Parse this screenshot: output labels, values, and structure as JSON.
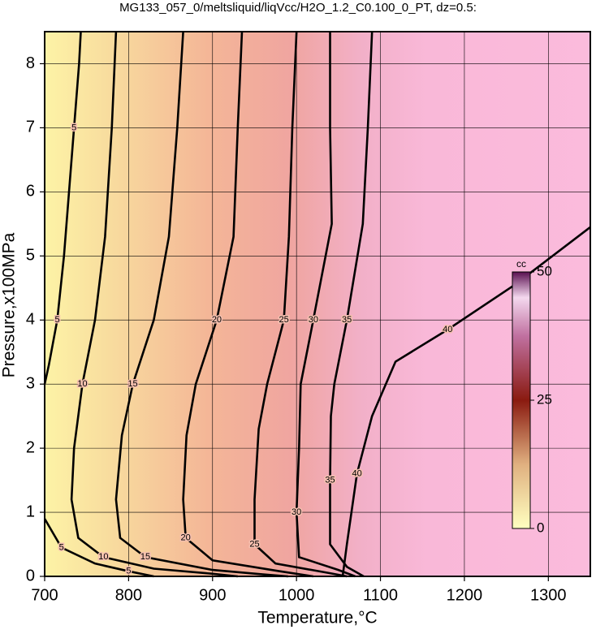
{
  "chart_data": {
    "type": "contour",
    "title": "MG133_057_0/meltsliquid/liqVcc/H2O_1.2_C0.100_0_PT, dz=0.5:",
    "xlabel": "Temperature,°C",
    "ylabel": "Pressure,x100MPa",
    "xlim": [
      700,
      1350
    ],
    "xticks": [
      700,
      800,
      900,
      1000,
      1100,
      1200,
      1300
    ],
    "ylim": [
      0,
      8.5
    ],
    "yticks": [
      0,
      1,
      2,
      3,
      4,
      5,
      6,
      7,
      8
    ],
    "grid": true,
    "contours": [
      {
        "level": 5,
        "x": [
          743,
          741,
          735,
          729,
          723,
          715,
          705,
          700
        ],
        "y": [
          8.5,
          8,
          7,
          6,
          5,
          4,
          3.3,
          3.0
        ]
      },
      {
        "level": 5,
        "x": [
          700,
          720,
          760,
          800,
          830
        ],
        "y": [
          0.9,
          0.45,
          0.2,
          0.08,
          0
        ]
      },
      {
        "level": 10,
        "x": [
          785,
          780,
          772,
          760,
          745,
          735,
          732,
          740,
          770,
          830,
          900,
          930
        ],
        "y": [
          8.5,
          7,
          5.3,
          4,
          3,
          2,
          1.2,
          0.6,
          0.3,
          0.12,
          0.04,
          0
        ]
      },
      {
        "level": 15,
        "x": [
          865,
          858,
          848,
          830,
          805,
          792,
          785,
          790,
          820,
          900,
          960,
          990
        ],
        "y": [
          8.5,
          7,
          5.3,
          4,
          3,
          2.2,
          1.2,
          0.6,
          0.3,
          0.1,
          0.03,
          0
        ]
      },
      {
        "level": 20,
        "x": [
          935,
          930,
          925,
          905,
          880,
          869,
          865,
          868,
          900,
          980,
          1020
        ],
        "y": [
          8.5,
          7,
          5.3,
          4,
          3,
          2.2,
          1.2,
          0.6,
          0.25,
          0.08,
          0
        ]
      },
      {
        "level": 25,
        "x": [
          1000,
          995,
          991,
          985,
          965,
          955,
          950,
          950,
          975,
          1040,
          1060
        ],
        "y": [
          8.5,
          7,
          5.3,
          4,
          3,
          2.3,
          1.2,
          0.5,
          0.2,
          0.05,
          0
        ]
      },
      {
        "level": 30,
        "x": [
          1040,
          1040,
          1042,
          1020,
          1005,
          1003,
          1000,
          1003,
          1050,
          1070
        ],
        "y": [
          8.5,
          7,
          5.5,
          4,
          3,
          2,
          1,
          0.3,
          0.1,
          0
        ]
      },
      {
        "level": 35,
        "x": [
          1090,
          1085,
          1079,
          1060,
          1045,
          1041,
          1040,
          1040,
          1060,
          1080
        ],
        "y": [
          8.5,
          7,
          5.5,
          4,
          3,
          2.5,
          1.5,
          0.5,
          0.15,
          0
        ]
      },
      {
        "level": 40,
        "x": [
          1055,
          1060,
          1072,
          1090,
          1118,
          1180,
          1260,
          1350
        ],
        "y": [
          0,
          0.5,
          1.6,
          2.5,
          3.35,
          3.85,
          4.55,
          5.45
        ]
      }
    ],
    "colorbar": {
      "label": "cc",
      "lim": [
        0,
        50
      ],
      "ticks": [
        0,
        25,
        50
      ]
    }
  }
}
